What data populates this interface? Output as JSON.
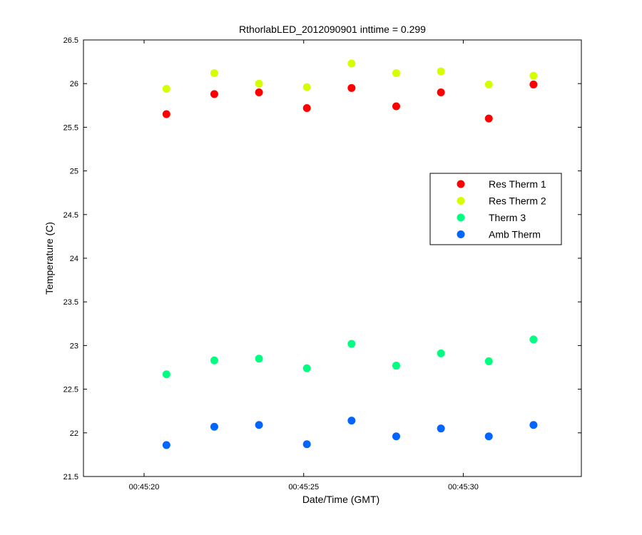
{
  "chart_data": {
    "type": "scatter",
    "title": "RthorlabLED_2012090901 inttime = 0.299",
    "xlabel": "Date/Time (GMT)",
    "ylabel": "Temperature (C)",
    "x_unit": "time",
    "xlim": [
      "00:45:18.1",
      "00:45:33.7"
    ],
    "ylim": [
      21.5,
      26.5
    ],
    "x_ticks": [
      "00:45:20",
      "00:45:25",
      "00:45:30"
    ],
    "y_ticks": [
      "21.5",
      "22",
      "22.5",
      "23",
      "23.5",
      "24",
      "24.5",
      "25",
      "25.5",
      "26",
      "26.5"
    ],
    "grid": false,
    "legend_position": "right",
    "x": [
      "00:45:20.7",
      "00:45:22.2",
      "00:45:23.6",
      "00:45:25.1",
      "00:45:26.5",
      "00:45:27.9",
      "00:45:29.3",
      "00:45:30.8",
      "00:45:32.2"
    ],
    "series": [
      {
        "name": "Res Therm 1",
        "color": "#ff0000",
        "values": [
          25.65,
          25.88,
          25.9,
          25.72,
          25.95,
          25.74,
          25.9,
          25.6,
          25.99
        ]
      },
      {
        "name": "Res Therm 2",
        "color": "#d4ff00",
        "values": [
          25.94,
          26.12,
          26.0,
          25.96,
          26.23,
          26.12,
          26.14,
          25.99,
          26.09
        ]
      },
      {
        "name": "Therm 3",
        "color": "#00ff80",
        "values": [
          22.67,
          22.83,
          22.85,
          22.74,
          23.02,
          22.77,
          22.91,
          22.82,
          23.07
        ]
      },
      {
        "name": "Amb Therm",
        "color": "#0066ff",
        "values": [
          21.86,
          22.07,
          22.09,
          21.87,
          22.14,
          21.96,
          22.05,
          21.96,
          22.09
        ]
      }
    ]
  }
}
